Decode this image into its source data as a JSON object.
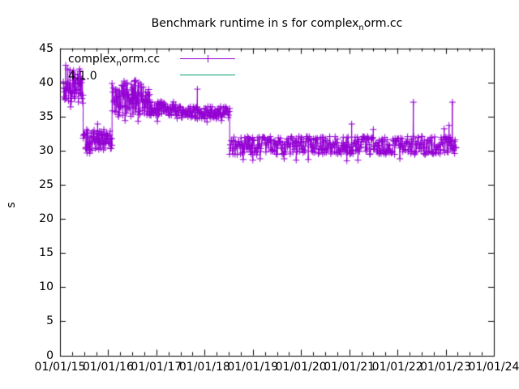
{
  "title": {
    "pre": "Benchmark runtime in s for complex",
    "sub": "n",
    "post": "orm.cc"
  },
  "colors": {
    "series": "#9400d3",
    "reference": "#009e73",
    "axis": "#000000",
    "background": "#ffffff"
  },
  "legend": {
    "series": {
      "pre": "complex",
      "sub": "n",
      "post": "orm.cc"
    },
    "reference": {
      "label": "4.1.0"
    }
  },
  "chart_data": {
    "type": "line",
    "style": "linespoints",
    "marker": "plus",
    "title": "Benchmark runtime in s for complex_norm.cc",
    "xlabel": "",
    "ylabel": "s",
    "grid": false,
    "legend_position": "top-left-inside",
    "series_name": "complex_norm.cc",
    "reference_name": "4.1.0",
    "ylim": [
      0,
      45
    ],
    "y_ticks": [
      0,
      5,
      10,
      15,
      20,
      25,
      30,
      35,
      40,
      45
    ],
    "x_range_years": [
      2015,
      2024
    ],
    "x_minor_subdivisions": 4,
    "x_ticks": [
      {
        "t": 2015,
        "label": "01/01/15"
      },
      {
        "t": 2016,
        "label": "01/01/16"
      },
      {
        "t": 2017,
        "label": "01/01/17"
      },
      {
        "t": 2018,
        "label": "01/01/18"
      },
      {
        "t": 2019,
        "label": "01/01/19"
      },
      {
        "t": 2020,
        "label": "01/01/20"
      },
      {
        "t": 2021,
        "label": "01/01/21"
      },
      {
        "t": 2022,
        "label": "01/01/22"
      },
      {
        "t": 2023,
        "label": "01/01/23"
      },
      {
        "t": 2024,
        "label": "01/01/24"
      }
    ],
    "segments": [
      {
        "t0": 2015.07,
        "t1": 2015.48,
        "lo": 36.8,
        "hi": 42.2,
        "n": 55
      },
      {
        "t0": 2015.48,
        "t1": 2016.08,
        "lo": 29.6,
        "hi": 33.2,
        "n": 75
      },
      {
        "t0": 2016.08,
        "t1": 2016.86,
        "lo": 34.9,
        "hi": 40.3,
        "n": 95
      },
      {
        "t0": 2016.86,
        "t1": 2017.4,
        "lo": 35.1,
        "hi": 37.2,
        "n": 60
      },
      {
        "t0": 2017.4,
        "t1": 2018.52,
        "lo": 34.6,
        "hi": 36.5,
        "n": 115
      },
      {
        "t0": 2018.52,
        "t1": 2023.22,
        "lo": 29.4,
        "hi": 32.1,
        "n": 420
      }
    ],
    "outliers": [
      {
        "t": 2015.12,
        "v": 42.5
      },
      {
        "t": 2015.22,
        "v": 36.4
      },
      {
        "t": 2015.78,
        "v": 33.9
      },
      {
        "t": 2016.35,
        "v": 34.4
      },
      {
        "t": 2016.62,
        "v": 34.3
      },
      {
        "t": 2017.02,
        "v": 34.3
      },
      {
        "t": 2017.85,
        "v": 39.0
      },
      {
        "t": 2018.05,
        "v": 34.2
      },
      {
        "t": 2018.35,
        "v": 34.4
      },
      {
        "t": 2018.8,
        "v": 28.7
      },
      {
        "t": 2019.0,
        "v": 28.6
      },
      {
        "t": 2019.15,
        "v": 28.8
      },
      {
        "t": 2019.65,
        "v": 28.8
      },
      {
        "t": 2019.9,
        "v": 28.6
      },
      {
        "t": 2020.15,
        "v": 28.7
      },
      {
        "t": 2020.95,
        "v": 28.5
      },
      {
        "t": 2021.05,
        "v": 33.9
      },
      {
        "t": 2021.18,
        "v": 28.6
      },
      {
        "t": 2021.5,
        "v": 33.1
      },
      {
        "t": 2022.05,
        "v": 28.8
      },
      {
        "t": 2022.33,
        "v": 37.1
      },
      {
        "t": 2022.97,
        "v": 33.2
      },
      {
        "t": 2023.07,
        "v": 33.7
      },
      {
        "t": 2023.14,
        "v": 37.1
      }
    ]
  }
}
